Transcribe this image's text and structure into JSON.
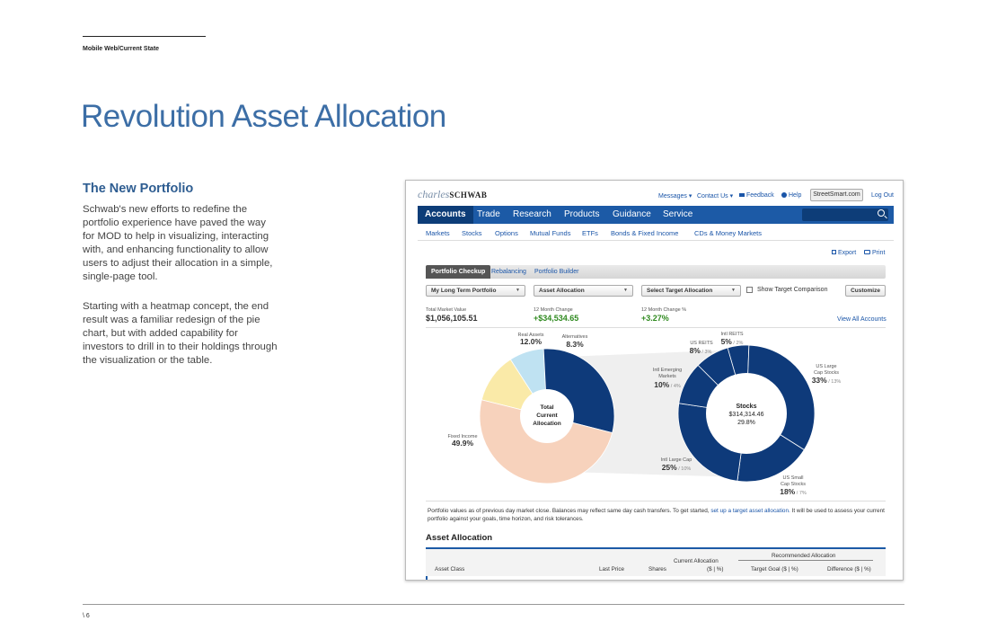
{
  "doc": {
    "section_label": "Mobile Web/Current State",
    "title": "Revolution Asset Allocation",
    "page_number": "\\ 6"
  },
  "intro": {
    "heading": "The New Portfolio",
    "paragraph1": "Schwab's new efforts to redefine the portfolio experience have paved the way for MOD to help in visualizing, interacting with, and enhancing functionality to allow users to adjust their allocation in a simple, single-page tool.",
    "paragraph2": "Starting with a heatmap concept, the end result was a familiar redesign of the pie chart, but with added capability for investors to drill in to their holdings through the visualization or the table."
  },
  "screenshot": {
    "logo_script": "charles",
    "logo_word": "SCHWAB",
    "utility": {
      "messages": "Messages ▾",
      "contact": "Contact Us ▾",
      "feedback": "Feedback",
      "help": "Help",
      "streetsmart": "StreetSmart.com",
      "logout": "Log Out"
    },
    "nav": [
      "Accounts",
      "Trade",
      "Research",
      "Products",
      "Guidance",
      "Service"
    ],
    "subnav": [
      "Markets",
      "Stocks",
      "Options",
      "Mutual Funds",
      "ETFs",
      "Bonds & Fixed Income",
      "CDs & Money Markets"
    ],
    "tools": {
      "export": "Export",
      "print": "Print"
    },
    "tabs": [
      "Portfolio Checkup",
      "Rebalancing",
      "Portfolio Builder"
    ],
    "dropdowns": {
      "portfolio": "My Long Term Portfolio",
      "view": "Asset Allocation",
      "target": "Select Target Allocation"
    },
    "show_target_label": "Show Target Comparison",
    "customize_label": "Customize",
    "stats": [
      {
        "label": "Total Market Value",
        "value": "$1,056,105.51"
      },
      {
        "label": "12 Month Change",
        "value": "+$34,534.65"
      },
      {
        "label": "12 Month Change %",
        "value": "+3.27%"
      }
    ],
    "view_all": "View All Accounts",
    "note_before": "Portfolio values as of previous day market close. Balances may reflect same day cash transfers. To get started,",
    "note_link": "set up a target asset allocation.",
    "note_after": "It will be used to assess your current portfolio against your goals, time horizon, and risk tolerances.",
    "table_title": "Asset Allocation",
    "table_headers": {
      "asset_class": "Asset Class",
      "last_price": "Last Price",
      "shares": "Shares",
      "current_allocation": "Current Allocation",
      "current_unit": "($ | %)",
      "recommended": "Recommended Allocation",
      "target_goal": "Target Goal ($ | %)",
      "difference": "Difference ($ | %)"
    }
  },
  "chart_data": [
    {
      "type": "pie",
      "center_label": [
        "Total",
        "Current",
        "Allocation"
      ],
      "slices": [
        {
          "label": "Real Assets",
          "value": 12.0,
          "display": "12.0%",
          "color": "#faeaa8"
        },
        {
          "label": "Alternatives",
          "value": 8.3,
          "display": "8.3%",
          "color": "#bfe2f2"
        },
        {
          "label": "",
          "value": 29.8,
          "display": "",
          "color": "#0e3a7a"
        },
        {
          "label": "Fixed Income",
          "value": 49.9,
          "display": "49.9%",
          "color": "#f7d2bc"
        }
      ]
    },
    {
      "type": "pie",
      "center_label": [
        "Stocks",
        "$314,314.46",
        "29.8%"
      ],
      "slices": [
        {
          "label": "Intl REITS",
          "value": 5,
          "display": "5%",
          "target": "2%"
        },
        {
          "label": "US Large Cap Stocks",
          "value": 33,
          "display": "33%",
          "target": "13%"
        },
        {
          "label": "US Small Cap Stocks",
          "value": 18,
          "display": "18%",
          "target": "7%"
        },
        {
          "label": "Intl Large Cap",
          "value": 25,
          "display": "25%",
          "target": "10%"
        },
        {
          "label": "Intl Emerging Markets",
          "value": 10,
          "display": "10%",
          "target": "4%"
        },
        {
          "label": "US REITS",
          "value": 8,
          "display": "8%",
          "target": "3%"
        }
      ]
    }
  ]
}
